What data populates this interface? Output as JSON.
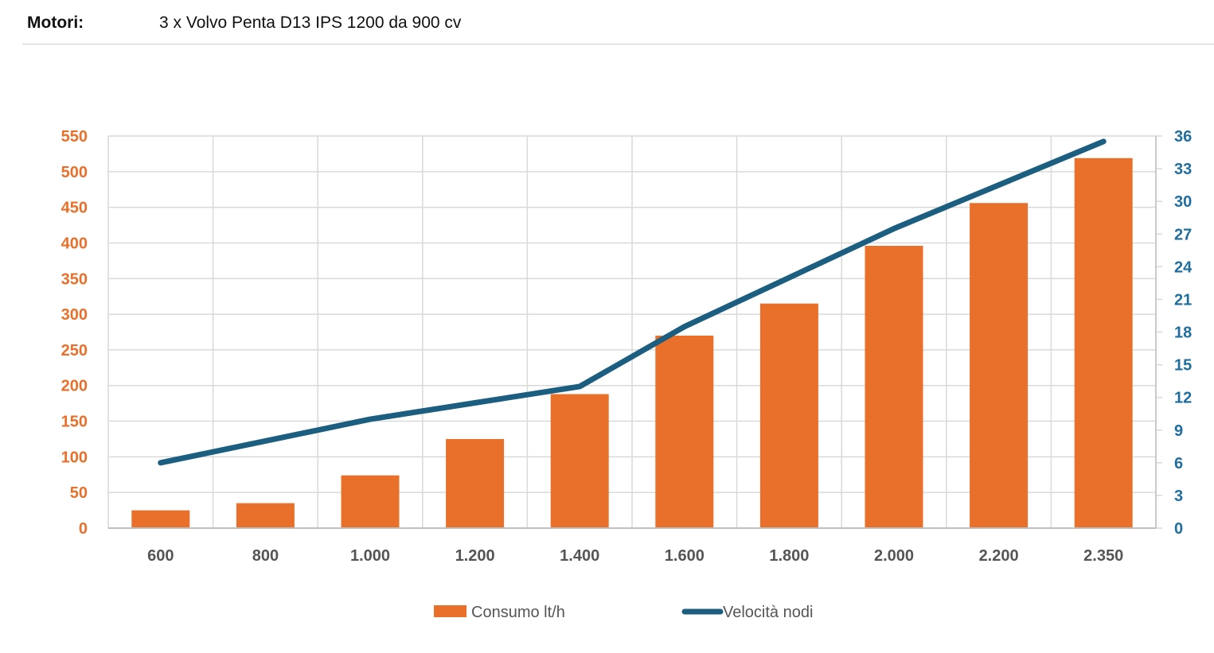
{
  "header": {
    "label": "Motori:",
    "value": "3 x Volvo Penta D13 IPS 1200 da 900 cv"
  },
  "colors": {
    "bar": "#E8702A",
    "line": "#1B5E80",
    "left_axis": "#E8702A",
    "right_axis": "#1F6E9E",
    "grid": "#D9D9D9"
  },
  "chart_data": {
    "type": "bar",
    "categories": [
      "600",
      "800",
      "1.000",
      "1.200",
      "1.400",
      "1.600",
      "1.800",
      "2.000",
      "2.200",
      "2.350"
    ],
    "series": [
      {
        "name": "Consumo lt/h",
        "type": "bar",
        "axis": "left",
        "values": [
          25,
          35,
          74,
          125,
          188,
          270,
          315,
          396,
          456,
          519
        ]
      },
      {
        "name": "Velocità nodi",
        "type": "line",
        "axis": "right",
        "values": [
          6,
          8,
          10,
          11.5,
          13,
          18.5,
          23,
          27.5,
          31.5,
          35.5
        ]
      }
    ],
    "yleft_ticks": [
      "0",
      "50",
      "100",
      "150",
      "200",
      "250",
      "300",
      "350",
      "400",
      "450",
      "500",
      "550"
    ],
    "yright_ticks": [
      "0",
      "3",
      "6",
      "9",
      "12",
      "15",
      "18",
      "21",
      "24",
      "27",
      "30",
      "33",
      "36"
    ],
    "yleft_lim": [
      0,
      550
    ],
    "yright_lim": [
      0,
      36
    ],
    "grid": true,
    "legend_position": "bottom"
  }
}
